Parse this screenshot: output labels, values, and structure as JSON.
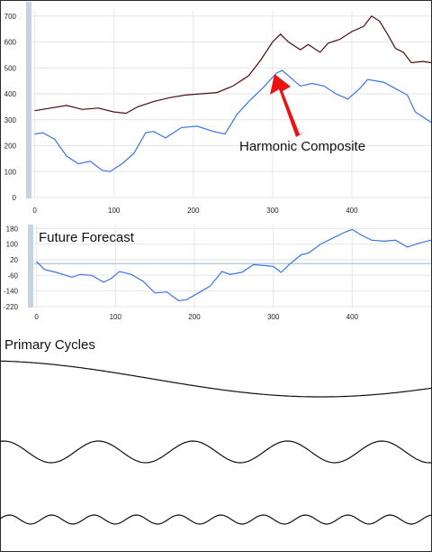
{
  "chart_data": [
    {
      "type": "line",
      "x_ticks": [
        0,
        100,
        200,
        300,
        400
      ],
      "y_ticks": [
        0,
        100,
        200,
        300,
        400,
        500,
        600,
        700
      ],
      "xlim": [
        -3,
        500
      ],
      "ylim": [
        0,
        720
      ],
      "grid": true,
      "series": [
        {
          "color": "#4b0d0d",
          "points": [
            [
              0,
              335
            ],
            [
              20,
              345
            ],
            [
              40,
              355
            ],
            [
              60,
              340
            ],
            [
              80,
              345
            ],
            [
              100,
              330
            ],
            [
              115,
              325
            ],
            [
              130,
              350
            ],
            [
              150,
              370
            ],
            [
              170,
              385
            ],
            [
              190,
              395
            ],
            [
              210,
              400
            ],
            [
              230,
              405
            ],
            [
              250,
              430
            ],
            [
              270,
              470
            ],
            [
              285,
              530
            ],
            [
              300,
              600
            ],
            [
              310,
              630
            ],
            [
              320,
              600
            ],
            [
              335,
              570
            ],
            [
              345,
              590
            ],
            [
              360,
              560
            ],
            [
              370,
              595
            ],
            [
              385,
              610
            ],
            [
              400,
              640
            ],
            [
              415,
              660
            ],
            [
              425,
              700
            ],
            [
              435,
              680
            ],
            [
              445,
              630
            ],
            [
              455,
              575
            ],
            [
              465,
              560
            ],
            [
              475,
              520
            ],
            [
              490,
              525
            ],
            [
              500,
              520
            ]
          ]
        },
        {
          "color": "#3a76e0",
          "points": [
            [
              0,
              245
            ],
            [
              10,
              250
            ],
            [
              25,
              225
            ],
            [
              40,
              160
            ],
            [
              55,
              130
            ],
            [
              70,
              140
            ],
            [
              85,
              105
            ],
            [
              95,
              100
            ],
            [
              110,
              130
            ],
            [
              125,
              170
            ],
            [
              140,
              250
            ],
            [
              150,
              255
            ],
            [
              165,
              230
            ],
            [
              185,
              270
            ],
            [
              205,
              275
            ],
            [
              225,
              255
            ],
            [
              240,
              245
            ],
            [
              255,
              320
            ],
            [
              270,
              370
            ],
            [
              290,
              430
            ],
            [
              305,
              480
            ],
            [
              312,
              490
            ],
            [
              320,
              470
            ],
            [
              335,
              430
            ],
            [
              350,
              440
            ],
            [
              365,
              430
            ],
            [
              380,
              400
            ],
            [
              395,
              380
            ],
            [
              410,
              420
            ],
            [
              420,
              455
            ],
            [
              440,
              445
            ],
            [
              455,
              420
            ],
            [
              470,
              395
            ],
            [
              480,
              330
            ],
            [
              490,
              310
            ],
            [
              500,
              290
            ]
          ]
        }
      ],
      "annotations": [
        {
          "text": "Harmonic Composite",
          "arrow_to": [
            312,
            490
          ]
        }
      ]
    },
    {
      "type": "line",
      "title": "Future Forecast",
      "x_ticks": [
        0,
        100,
        200,
        300,
        400
      ],
      "y_ticks": [
        180,
        100,
        20,
        -60,
        -140,
        -220
      ],
      "xlim": [
        -3,
        500
      ],
      "ylim": [
        -225,
        200
      ],
      "grid": true,
      "reference_line": 0,
      "series": [
        {
          "color": "#3a76e0",
          "points": [
            [
              0,
              10
            ],
            [
              10,
              -30
            ],
            [
              25,
              -45
            ],
            [
              45,
              -70
            ],
            [
              55,
              -55
            ],
            [
              70,
              -60
            ],
            [
              85,
              -95
            ],
            [
              95,
              -75
            ],
            [
              105,
              -40
            ],
            [
              120,
              -55
            ],
            [
              135,
              -90
            ],
            [
              150,
              -150
            ],
            [
              165,
              -145
            ],
            [
              180,
              -190
            ],
            [
              190,
              -185
            ],
            [
              205,
              -150
            ],
            [
              220,
              -115
            ],
            [
              235,
              -40
            ],
            [
              245,
              -55
            ],
            [
              260,
              -45
            ],
            [
              275,
              -5
            ],
            [
              290,
              -10
            ],
            [
              300,
              -15
            ],
            [
              310,
              -45
            ],
            [
              320,
              -5
            ],
            [
              335,
              45
            ],
            [
              345,
              55
            ],
            [
              360,
              100
            ],
            [
              375,
              130
            ],
            [
              390,
              160
            ],
            [
              400,
              175
            ],
            [
              412,
              145
            ],
            [
              425,
              120
            ],
            [
              440,
              115
            ],
            [
              455,
              120
            ],
            [
              470,
              85
            ],
            [
              485,
              105
            ],
            [
              500,
              120
            ]
          ]
        }
      ]
    },
    {
      "type": "line",
      "title": "Primary Cycles",
      "series": [
        {
          "color": "#111111",
          "period": 750,
          "amplitude": 1,
          "phase_deg": 0
        },
        {
          "color": "#111111",
          "period": 105,
          "amplitude": 1,
          "phase_deg": 75
        },
        {
          "color": "#111111",
          "period": 47,
          "amplitude": 1,
          "phase_deg": 10
        }
      ]
    }
  ],
  "colors": {
    "axis_strip": "#c5d3e3",
    "grid": "#e6e6e6",
    "arrow": "#ee1111"
  }
}
